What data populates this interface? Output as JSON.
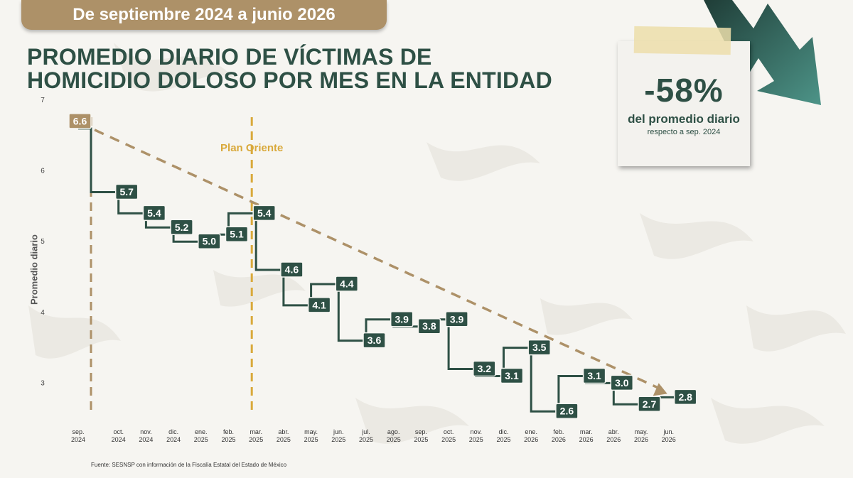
{
  "banner": {
    "period": "De septiembre 2024 a junio 2026"
  },
  "title": {
    "line1": "PROMEDIO DIARIO DE VÍCTIMAS DE",
    "line2": "HOMICIDIO DOLOSO POR MES EN LA ENTIDAD"
  },
  "note": {
    "percent": "-58%",
    "line1": "del promedio diario",
    "line2": "respecto a sep. 2024"
  },
  "source": "Fuente: SESNSP con información de la Fiscalía Estatal del Estado de México",
  "colors": {
    "series": "#2e5045",
    "trend": "#ad9168",
    "marker": "#d9a93b",
    "title": "#2e5045"
  },
  "chart_data": {
    "type": "line",
    "step": true,
    "ylabel": "Promedio diario",
    "ylim": [
      2.5,
      7
    ],
    "yticks": [
      "7",
      "6",
      "5",
      "4",
      "3"
    ],
    "x": [
      [
        "sep.",
        "2024"
      ],
      [
        "oct.",
        "2024"
      ],
      [
        "nov.",
        "2024"
      ],
      [
        "dic.",
        "2024"
      ],
      [
        "ene.",
        "2025"
      ],
      [
        "feb.",
        "2025"
      ],
      [
        "mar.",
        "2025"
      ],
      [
        "abr.",
        "2025"
      ],
      [
        "may.",
        "2025"
      ],
      [
        "jun.",
        "2025"
      ],
      [
        "jul.",
        "2025"
      ],
      [
        "ago.",
        "2025"
      ],
      [
        "sep.",
        "2025"
      ],
      [
        "oct.",
        "2025"
      ],
      [
        "nov.",
        "2025"
      ],
      [
        "dic.",
        "2025"
      ],
      [
        "ene.",
        "2026"
      ],
      [
        "feb.",
        "2026"
      ],
      [
        "mar.",
        "2026"
      ],
      [
        "abr.",
        "2026"
      ],
      [
        "may.",
        "2026"
      ],
      [
        "jun.",
        "2026"
      ]
    ],
    "values": [
      6.6,
      5.7,
      5.4,
      5.2,
      5.0,
      5.1,
      5.4,
      4.6,
      4.1,
      4.4,
      3.6,
      3.9,
      3.8,
      3.9,
      3.2,
      3.1,
      3.5,
      2.6,
      3.1,
      3.0,
      2.7,
      2.8
    ],
    "labels": [
      "6.6",
      "5.7",
      "5.4",
      "5.2",
      "5.0",
      "5.1",
      "5.4",
      "4.6",
      "4.1",
      "4.4",
      "3.6",
      "3.9",
      "3.8",
      "3.9",
      "3.2",
      "3.1",
      "3.5",
      "2.6",
      "3.1",
      "3.0",
      "2.7",
      "2.8"
    ],
    "trend": {
      "from": [
        0,
        6.6
      ],
      "to": [
        21,
        2.8
      ]
    },
    "annotations": [
      {
        "at_index": 0,
        "style": "dashed-vertical",
        "text": ""
      },
      {
        "at_index": 6,
        "style": "dashed-vertical",
        "text": "Plan Oriente"
      }
    ]
  }
}
